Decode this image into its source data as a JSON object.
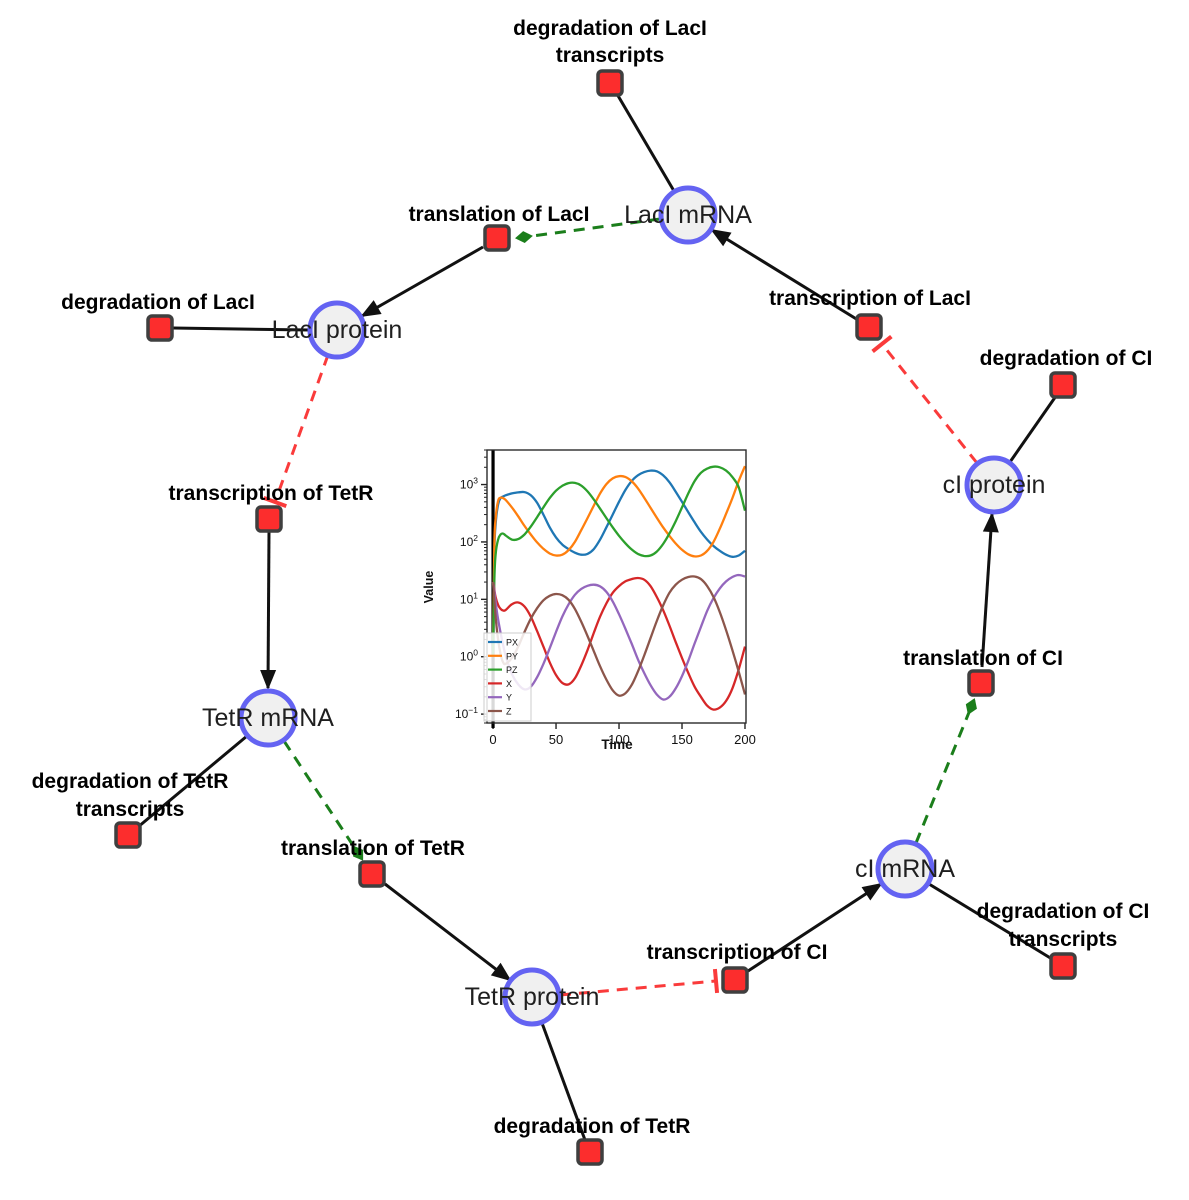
{
  "diagram": {
    "species": [
      {
        "label": "LacI mRNA"
      },
      {
        "label": "LacI protein"
      },
      {
        "label": "TetR mRNA"
      },
      {
        "label": "TetR protein"
      },
      {
        "label": "cI mRNA"
      },
      {
        "label": "cI protein"
      }
    ],
    "reactions": [
      {
        "label_lines": [
          "degradation of LacI",
          "transcripts"
        ]
      },
      {
        "label_lines": [
          "translation of LacI"
        ]
      },
      {
        "label_lines": [
          "degradation of LacI"
        ]
      },
      {
        "label_lines": [
          "transcription of TetR"
        ]
      },
      {
        "label_lines": [
          "degradation of TetR",
          "transcripts"
        ]
      },
      {
        "label_lines": [
          "translation of TetR"
        ]
      },
      {
        "label_lines": [
          "degradation of TetR"
        ]
      },
      {
        "label_lines": [
          "transcription of CI"
        ]
      },
      {
        "label_lines": [
          "degradation of CI",
          "transcripts"
        ]
      },
      {
        "label_lines": [
          "translation of CI"
        ]
      },
      {
        "label_lines": [
          "degradation of CI"
        ]
      },
      {
        "label_lines": [
          "transcription of LacI"
        ]
      }
    ],
    "colors": {
      "species_fill": "#f0f0f0",
      "species_border": "#6463f2",
      "reaction_fill": "#fc2d2d",
      "reaction_border": "#3f3f3f",
      "edge_black": "#111111",
      "modifier_green": "#1b7e1b",
      "inhibition_red": "#fa3b3b"
    }
  },
  "chart_data": {
    "type": "line",
    "title": "",
    "xlabel": "Time",
    "ylabel": "Value",
    "yscale": "log",
    "grid": false,
    "legend_position": "lower left",
    "xlim": [
      -4.8,
      200.8
    ],
    "ylim": [
      0.07,
      4000
    ],
    "x_ticks": [
      0,
      50,
      100,
      150,
      200
    ],
    "y_tick_exponents": [
      -1,
      0,
      1,
      2,
      3
    ],
    "y_tick_labels": [
      "10^-1",
      "10^0",
      "10^1",
      "10^2",
      "10^3"
    ],
    "vline_x": 0,
    "x": [
      0,
      1,
      2,
      4,
      6,
      8,
      10,
      15,
      20,
      25,
      30,
      35,
      40,
      45,
      50,
      55,
      60,
      65,
      70,
      75,
      80,
      85,
      90,
      95,
      100,
      105,
      110,
      115,
      120,
      125,
      130,
      135,
      140,
      145,
      150,
      155,
      160,
      165,
      170,
      175,
      180,
      185,
      190,
      195,
      200
    ],
    "series": [
      {
        "name": "PX",
        "color": "#1f77b4",
        "values": [
          1,
          60,
          200,
          450,
          580,
          620,
          650,
          700,
          730,
          740,
          650,
          480,
          300,
          180,
          120,
          90,
          75,
          65,
          60,
          62,
          75,
          110,
          180,
          300,
          500,
          800,
          1150,
          1450,
          1650,
          1750,
          1700,
          1450,
          1100,
          750,
          500,
          330,
          220,
          150,
          110,
          85,
          70,
          60,
          55,
          58,
          70
        ]
      },
      {
        "name": "PY",
        "color": "#ff7f0e",
        "values": [
          1,
          80,
          250,
          520,
          590,
          580,
          540,
          400,
          280,
          190,
          135,
          98,
          76,
          63,
          58,
          60,
          72,
          100,
          160,
          260,
          430,
          700,
          1020,
          1280,
          1400,
          1360,
          1150,
          860,
          590,
          395,
          265,
          180,
          128,
          94,
          73,
          61,
          56,
          58,
          70,
          100,
          170,
          310,
          580,
          1150,
          2100
        ]
      },
      {
        "name": "PZ",
        "color": "#2ca02c",
        "values": [
          1,
          20,
          60,
          110,
          135,
          140,
          130,
          110,
          112,
          135,
          185,
          270,
          400,
          580,
          780,
          950,
          1060,
          1070,
          960,
          760,
          550,
          380,
          260,
          180,
          128,
          95,
          74,
          62,
          57,
          58,
          68,
          92,
          140,
          230,
          400,
          700,
          1150,
          1600,
          1900,
          2050,
          2000,
          1750,
          1350,
          900,
          350
        ]
      },
      {
        "name": "X",
        "color": "#d62728",
        "values": [
          20,
          15,
          11,
          8,
          6.8,
          6.4,
          6.5,
          8.2,
          8.8,
          7.5,
          5,
          2.8,
          1.5,
          0.8,
          0.48,
          0.35,
          0.33,
          0.42,
          0.7,
          1.3,
          2.6,
          5,
          8.5,
          13,
          17,
          20.5,
          22.5,
          23.5,
          22,
          17,
          11,
          6.5,
          3.5,
          1.8,
          0.95,
          0.52,
          0.3,
          0.2,
          0.14,
          0.12,
          0.13,
          0.17,
          0.28,
          0.6,
          1.5
        ]
      },
      {
        "name": "Y",
        "color": "#9467bd",
        "values": [
          20,
          14,
          9,
          4.5,
          2.6,
          1.6,
          1.05,
          0.5,
          0.33,
          0.27,
          0.3,
          0.44,
          0.75,
          1.4,
          2.7,
          5,
          8.2,
          12,
          15.2,
          17.2,
          18,
          16.8,
          13.5,
          9.2,
          5.5,
          3.1,
          1.7,
          0.9,
          0.52,
          0.32,
          0.22,
          0.18,
          0.2,
          0.28,
          0.46,
          0.85,
          1.7,
          3.3,
          6.3,
          10.5,
          15.5,
          20.5,
          24.5,
          26.5,
          25
        ]
      },
      {
        "name": "Z",
        "color": "#8c564b",
        "values": [
          20,
          10,
          5,
          2,
          1.1,
          0.8,
          0.75,
          0.95,
          1.5,
          2.7,
          4.6,
          7,
          9.6,
          11.5,
          12.4,
          11.8,
          9.8,
          6.8,
          4.1,
          2.3,
          1.25,
          0.68,
          0.4,
          0.26,
          0.21,
          0.23,
          0.32,
          0.55,
          1.05,
          2.1,
          4.2,
          7.8,
          13,
          18,
          22,
          24.5,
          25,
          22.5,
          17,
          11,
          6,
          2.9,
          1.3,
          0.55,
          0.22
        ]
      }
    ]
  }
}
